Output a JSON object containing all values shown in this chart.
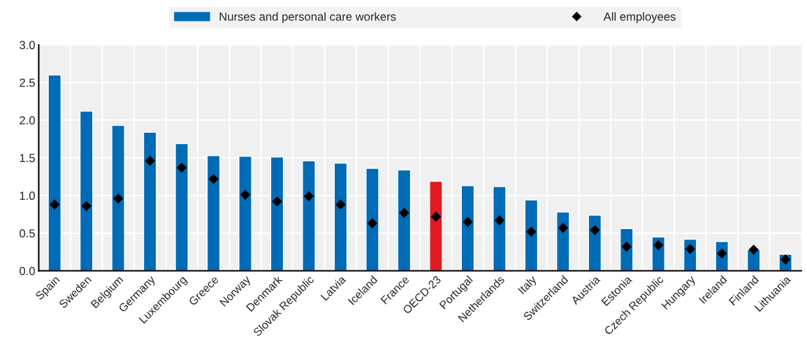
{
  "chart_data": {
    "type": "bar",
    "categories": [
      "Spain",
      "Sweden",
      "Belgium",
      "Germany",
      "Luxembourg",
      "Greece",
      "Norway",
      "Denmark",
      "Slovak Republic",
      "Latvia",
      "Iceland",
      "France",
      "OECD-23",
      "Portugal",
      "Netherlands",
      "Italy",
      "Switzerland",
      "Austria",
      "Estonia",
      "Czech Republic",
      "Hungary",
      "Ireland",
      "Finland",
      "Lithuania"
    ],
    "series": [
      {
        "name": "Nurses and personal care workers",
        "color": "#006bb6",
        "colors": [
          "#006bb6",
          "#006bb6",
          "#006bb6",
          "#006bb6",
          "#006bb6",
          "#006bb6",
          "#006bb6",
          "#006bb6",
          "#006bb6",
          "#006bb6",
          "#006bb6",
          "#006bb6",
          "#e01b22",
          "#006bb6",
          "#006bb6",
          "#006bb6",
          "#006bb6",
          "#006bb6",
          "#006bb6",
          "#006bb6",
          "#006bb6",
          "#006bb6",
          "#006bb6",
          "#006bb6"
        ],
        "values": [
          2.6,
          2.12,
          1.93,
          1.84,
          1.69,
          1.53,
          1.52,
          1.51,
          1.46,
          1.43,
          1.36,
          1.34,
          1.19,
          1.13,
          1.12,
          0.94,
          0.78,
          0.74,
          0.56,
          0.45,
          0.42,
          0.39,
          0.28,
          0.22
        ]
      },
      {
        "name": "All employees",
        "type": "scatter",
        "marker": "diamond",
        "color": "#000000",
        "values": [
          0.88,
          0.86,
          0.96,
          1.46,
          1.37,
          1.22,
          1.01,
          0.92,
          0.99,
          0.88,
          0.63,
          0.77,
          0.72,
          0.65,
          0.67,
          0.52,
          0.57,
          0.54,
          0.32,
          0.34,
          0.29,
          0.23,
          0.28,
          0.15
        ]
      }
    ],
    "ylim": [
      0,
      3.0
    ],
    "yticks": [
      {
        "value": 0,
        "label": "0.0"
      },
      {
        "value": 0.5,
        "label": "0.5"
      },
      {
        "value": 1,
        "label": "1.0"
      },
      {
        "value": 1.5,
        "label": "1.5"
      },
      {
        "value": 2,
        "label": "2.0"
      },
      {
        "value": 2.5,
        "label": "2.5"
      },
      {
        "value": 3,
        "label": "3.0"
      }
    ],
    "grid": true,
    "legend": "top"
  }
}
